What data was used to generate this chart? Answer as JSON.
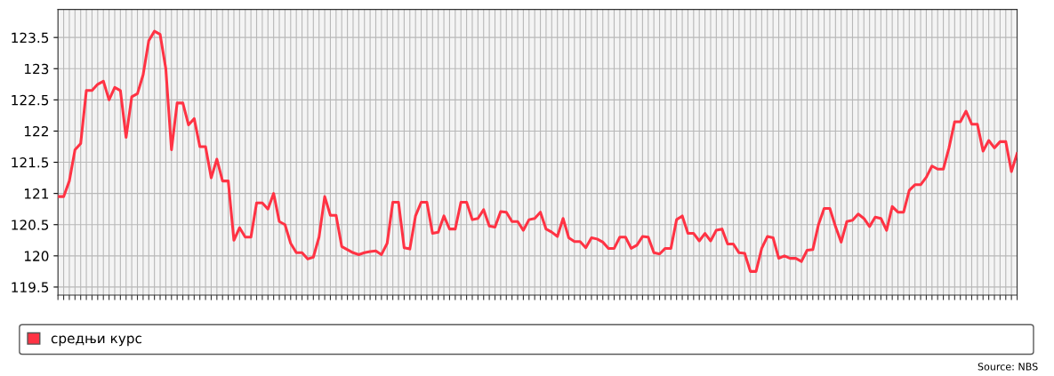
{
  "chart_data": {
    "type": "line",
    "categories": [
      null,
      null,
      null,
      null,
      null,
      null,
      null,
      null,
      null,
      null,
      null,
      null,
      null,
      null,
      null,
      null,
      null,
      null,
      null,
      null,
      null,
      null,
      null,
      null,
      null,
      null,
      null,
      null,
      null,
      null,
      null,
      null,
      null,
      null,
      null,
      null,
      null,
      null,
      null,
      null,
      null,
      null,
      null,
      null,
      null,
      null,
      null,
      null,
      null,
      null,
      null,
      null,
      null,
      null,
      null,
      null,
      null,
      null,
      null,
      null,
      null,
      null,
      null,
      null,
      null,
      null,
      null,
      null,
      null,
      null,
      null,
      null,
      null,
      null,
      null,
      null,
      null,
      null,
      null,
      null,
      null,
      null,
      null,
      null,
      null,
      null,
      null,
      null,
      null,
      null,
      null,
      null,
      null,
      null,
      null,
      null,
      null,
      null,
      null,
      null,
      null,
      null,
      null,
      null,
      null,
      null,
      null,
      null,
      null,
      null,
      null,
      null,
      null,
      null,
      null,
      null,
      null,
      null,
      null,
      null,
      null,
      null,
      null,
      null,
      null,
      null,
      null,
      null,
      null,
      null,
      null,
      null,
      null,
      null,
      null,
      null,
      null,
      null,
      null,
      null,
      null,
      null,
      null,
      null,
      null,
      null,
      null,
      null,
      null,
      null,
      null,
      null,
      null,
      null,
      null,
      null,
      null,
      null,
      null,
      null,
      null,
      null,
      null,
      null,
      null,
      null,
      null,
      null,
      null,
      null
    ],
    "series": [
      {
        "name": "средњи курс",
        "color": "#ff3344",
        "values": [
          120.95,
          120.95,
          121.2,
          121.7,
          121.8,
          122.65,
          122.65,
          122.75,
          122.8,
          122.5,
          122.7,
          122.65,
          121.9,
          122.55,
          122.6,
          122.9,
          123.45,
          123.6,
          123.55,
          123.0,
          121.7,
          122.45,
          122.45,
          122.1,
          122.2,
          121.75,
          121.75,
          121.25,
          121.55,
          121.2,
          121.2,
          120.25,
          120.45,
          120.3,
          120.3,
          120.85,
          120.85,
          120.75,
          121.0,
          120.55,
          120.5,
          120.2,
          120.05,
          120.05,
          119.95,
          119.98,
          120.3,
          120.95,
          120.65,
          120.65,
          120.15,
          120.1,
          120.05,
          120.02,
          120.05,
          120.07,
          120.08,
          120.02,
          120.2,
          120.86,
          120.86,
          120.13,
          120.11,
          120.64,
          120.86,
          120.86,
          120.36,
          120.38,
          120.64,
          120.43,
          120.43,
          120.86,
          120.86,
          120.58,
          120.6,
          120.74,
          120.48,
          120.46,
          120.71,
          120.7,
          120.55,
          120.55,
          120.41,
          120.58,
          120.6,
          120.7,
          120.43,
          120.38,
          120.31,
          120.6,
          120.29,
          120.23,
          120.23,
          120.13,
          120.29,
          120.27,
          120.22,
          120.12,
          120.12,
          120.3,
          120.3,
          120.12,
          120.17,
          120.31,
          120.3,
          120.05,
          120.03,
          120.12,
          120.12,
          120.58,
          120.64,
          120.36,
          120.36,
          120.24,
          120.36,
          120.24,
          120.41,
          120.43,
          120.19,
          120.19,
          120.05,
          120.04,
          119.75,
          119.75,
          120.12,
          120.31,
          120.29,
          119.96,
          120.0,
          119.96,
          119.96,
          119.91,
          120.09,
          120.1,
          120.5,
          120.76,
          120.76,
          120.47,
          120.22,
          120.55,
          120.57,
          120.67,
          120.6,
          120.47,
          120.62,
          120.6,
          120.41,
          120.79,
          120.7,
          120.7,
          121.05,
          121.14,
          121.14,
          121.26,
          121.44,
          121.39,
          121.39,
          121.73,
          122.15,
          122.15,
          122.32,
          122.11,
          122.11,
          121.68,
          121.85,
          121.73,
          121.83,
          121.83,
          121.35,
          121.64
        ]
      }
    ],
    "ylim": [
      119.37,
      123.95
    ],
    "yticks": [
      119.5,
      120,
      120.5,
      121,
      121.5,
      122,
      122.5,
      123,
      123.5
    ],
    "tick_labels": "y",
    "grid": true,
    "legend": "bottom",
    "line_style": "solid",
    "marker": "none",
    "annotations": [
      "Source: NBS"
    ]
  }
}
